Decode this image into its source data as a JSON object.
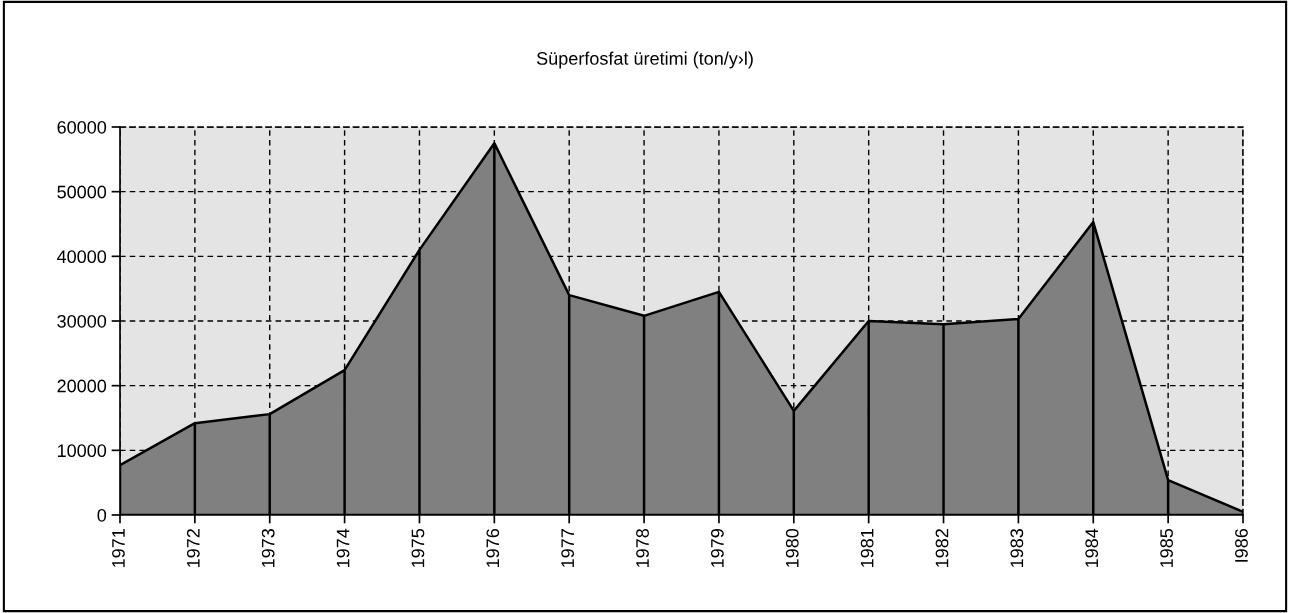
{
  "chart_data": {
    "type": "area",
    "title": "Süperfosfat üretimi (ton/y›l)",
    "categories": [
      "1971",
      "1972",
      "1973",
      "1974",
      "1975",
      "1976",
      "1977",
      "1978",
      "1979",
      "1980",
      "1981",
      "1982",
      "1983",
      "1984",
      "1985",
      "I986"
    ],
    "series": [
      {
        "color": "#808080",
        "values": [
          7700,
          14200,
          15600,
          22400,
          41000,
          57500,
          34000,
          30800,
          34500,
          16100,
          30000,
          29500,
          30300,
          45300,
          5400,
          500
        ]
      }
    ],
    "ylim": [
      0,
      60000
    ],
    "yticks": [
      0,
      10000,
      20000,
      30000,
      40000,
      50000,
      60000
    ],
    "grid": true,
    "line_style": "dashed"
  }
}
